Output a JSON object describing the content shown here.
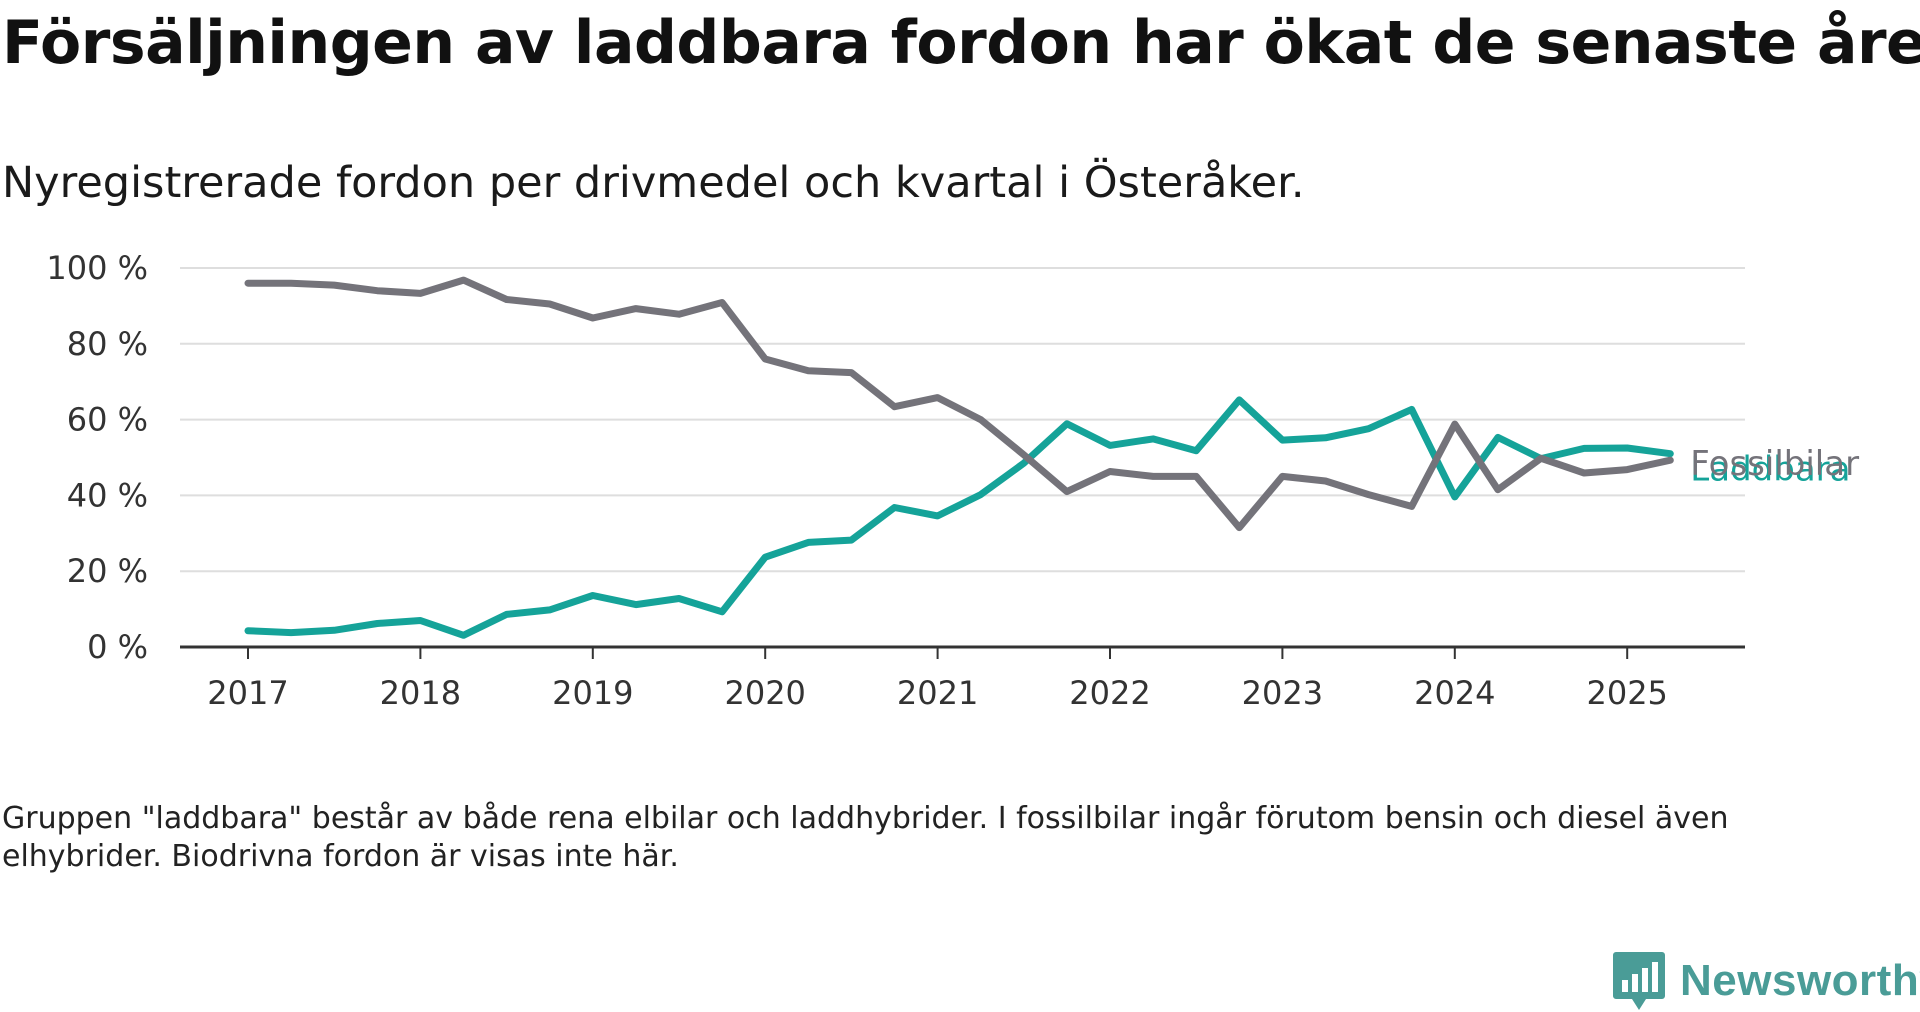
{
  "title": "Försäljningen av laddbara fordon har ökat de senaste åren",
  "subtitle": "Nyregistrerade fordon per drivmedel och kvartal i Österåker.",
  "note": "Gruppen \"laddbara\" består av både rena elbilar och laddhybrider. I fossilbilar ingår förutom bensin och diesel även elhybrider. Biodrivna fordon är visas inte här.",
  "brand": {
    "name": "Newsworthy",
    "color": "#4a9c97",
    "icon": "bar-chart-speech-bubble-icon"
  },
  "chart_data": {
    "type": "line",
    "x": [
      "2017-Q1",
      "2017-Q2",
      "2017-Q3",
      "2017-Q4",
      "2018-Q1",
      "2018-Q2",
      "2018-Q3",
      "2018-Q4",
      "2019-Q1",
      "2019-Q2",
      "2019-Q3",
      "2019-Q4",
      "2020-Q1",
      "2020-Q2",
      "2020-Q3",
      "2020-Q4",
      "2021-Q1",
      "2021-Q2",
      "2021-Q3",
      "2021-Q4",
      "2022-Q1",
      "2022-Q2",
      "2022-Q3",
      "2022-Q4",
      "2023-Q1",
      "2023-Q2",
      "2023-Q3",
      "2023-Q4",
      "2024-Q1",
      "2024-Q2",
      "2024-Q3",
      "2024-Q4",
      "2025-Q1",
      "2025-Q2"
    ],
    "x_ticks": [
      "2017",
      "2018",
      "2019",
      "2020",
      "2021",
      "2022",
      "2023",
      "2024",
      "2025"
    ],
    "y_ticks": [
      "0 %",
      "20 %",
      "40 %",
      "60 %",
      "80 %",
      "100 %"
    ],
    "ylim": [
      0,
      100
    ],
    "grid": true,
    "series": [
      {
        "name": "Fossilbilar",
        "color": "#74737a",
        "values": [
          96,
          96,
          95.5,
          94,
          93.3,
          96.8,
          91.7,
          90.5,
          86.8,
          89.3,
          87.8,
          90.9,
          76,
          72.9,
          72.4,
          63.4,
          65.8,
          60,
          50.7,
          41,
          46.3,
          45,
          45,
          31.5,
          45,
          43.8,
          40.2,
          37.1,
          58.8,
          41.5,
          49.8,
          45.9,
          46.8,
          49.3
        ]
      },
      {
        "name": "Laddbara",
        "color": "#15a399",
        "values": [
          4.3,
          3.8,
          4.4,
          6.2,
          7,
          3.1,
          8.6,
          9.8,
          13.6,
          11.2,
          12.8,
          9.3,
          23.7,
          27.6,
          28.2,
          36.8,
          34.6,
          40.2,
          48.5,
          58.9,
          53.2,
          54.9,
          51.8,
          65.2,
          54.6,
          55.2,
          57.6,
          62.7,
          39.6,
          55.3,
          49.7,
          52.4,
          52.5,
          51
        ]
      }
    ]
  }
}
